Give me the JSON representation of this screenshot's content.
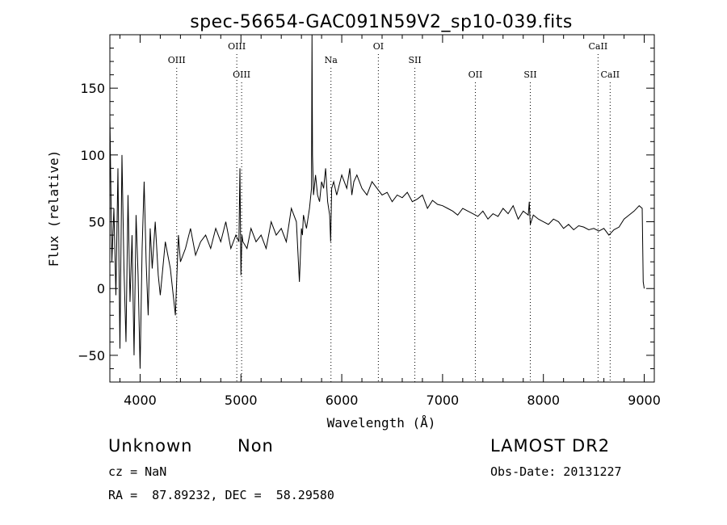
{
  "chart_data": {
    "type": "line",
    "title": "spec-56654-GAC091N59V2_sp10-039.fits",
    "xlabel": "Wavelength (Å)",
    "ylabel": "Flux (relative)",
    "xlim": [
      3700,
      9100
    ],
    "ylim": [
      -70,
      190
    ],
    "x_ticks": [
      4000,
      5000,
      6000,
      7000,
      8000,
      9000
    ],
    "y_ticks": [
      -50,
      0,
      50,
      100,
      150
    ],
    "grid": false,
    "line_color": "#000000",
    "series": [
      {
        "x": [
          3700,
          3720,
          3740,
          3760,
          3780,
          3800,
          3820,
          3840,
          3860,
          3880,
          3900,
          3920,
          3940,
          3960,
          3980,
          4000,
          4020,
          4040,
          4060,
          4080,
          4100,
          4120,
          4150,
          4180,
          4200,
          4250,
          4300,
          4350,
          4380,
          4400,
          4450,
          4500,
          4550,
          4600,
          4650,
          4700,
          4750,
          4800,
          4850,
          4900,
          4950,
          4980,
          4990,
          5000,
          5010,
          5020,
          5060,
          5100,
          5150,
          5200,
          5250,
          5300,
          5350,
          5400,
          5450,
          5500,
          5550,
          5580,
          5600,
          5610,
          5620,
          5650,
          5680,
          5700,
          5705,
          5710,
          5720,
          5740,
          5760,
          5780,
          5800,
          5820,
          5840,
          5860,
          5880,
          5890,
          5900,
          5920,
          5950,
          6000,
          6050,
          6080,
          6100,
          6120,
          6150,
          6200,
          6250,
          6300,
          6350,
          6400,
          6450,
          6500,
          6550,
          6600,
          6650,
          6700,
          6750,
          6800,
          6850,
          6900,
          6950,
          7000,
          7050,
          7100,
          7150,
          7200,
          7250,
          7300,
          7350,
          7400,
          7450,
          7500,
          7550,
          7600,
          7650,
          7700,
          7750,
          7800,
          7850,
          7860,
          7870,
          7900,
          7950,
          8000,
          8050,
          8100,
          8150,
          8200,
          8250,
          8300,
          8350,
          8400,
          8450,
          8500,
          8550,
          8600,
          8650,
          8700,
          8750,
          8800,
          8850,
          8900,
          8950,
          8980,
          8990,
          9000
        ],
        "y": [
          130,
          20,
          60,
          -5,
          90,
          -45,
          100,
          15,
          -40,
          70,
          -10,
          40,
          -50,
          55,
          10,
          -60,
          30,
          80,
          20,
          -20,
          45,
          15,
          50,
          10,
          -5,
          35,
          15,
          -20,
          40,
          20,
          30,
          45,
          25,
          35,
          40,
          30,
          45,
          35,
          50,
          30,
          40,
          35,
          90,
          10,
          40,
          35,
          30,
          45,
          35,
          40,
          30,
          50,
          40,
          45,
          35,
          60,
          50,
          5,
          45,
          40,
          55,
          45,
          60,
          75,
          190,
          100,
          70,
          85,
          70,
          65,
          80,
          75,
          90,
          65,
          55,
          35,
          75,
          80,
          70,
          85,
          75,
          90,
          70,
          80,
          85,
          75,
          70,
          80,
          75,
          70,
          72,
          65,
          70,
          68,
          72,
          65,
          67,
          70,
          60,
          66,
          63,
          62,
          60,
          58,
          55,
          60,
          58,
          56,
          54,
          58,
          52,
          56,
          54,
          60,
          56,
          62,
          52,
          58,
          55,
          65,
          48,
          55,
          52,
          50,
          48,
          52,
          50,
          45,
          48,
          44,
          47,
          46,
          44,
          45,
          43,
          45,
          40,
          44,
          46,
          52,
          55,
          58,
          62,
          60,
          5,
          0
        ]
      }
    ],
    "lines": [
      {
        "label": "OIII",
        "x": 4363,
        "row": 1
      },
      {
        "label": "OIII",
        "x": 4959,
        "row": 0
      },
      {
        "label": "OIII",
        "x": 5007,
        "row": 2
      },
      {
        "label": "Na",
        "x": 5893,
        "row": 1
      },
      {
        "label": "OI",
        "x": 6363,
        "row": 0
      },
      {
        "label": "SII",
        "x": 6725,
        "row": 1
      },
      {
        "label": "OII",
        "x": 7325,
        "row": 2
      },
      {
        "label": "SII",
        "x": 7870,
        "row": 2
      },
      {
        "label": "CaII",
        "x": 8542,
        "row": 0
      },
      {
        "label": "CaII",
        "x": 8662,
        "row": 2
      }
    ]
  },
  "info": {
    "class": "Unknown",
    "subclass": "Non",
    "cz": "cz = NaN",
    "radec": "RA =  87.89232, DEC =  58.29580",
    "survey": "LAMOST DR2",
    "obsdate": "Obs-Date: 20131227"
  }
}
